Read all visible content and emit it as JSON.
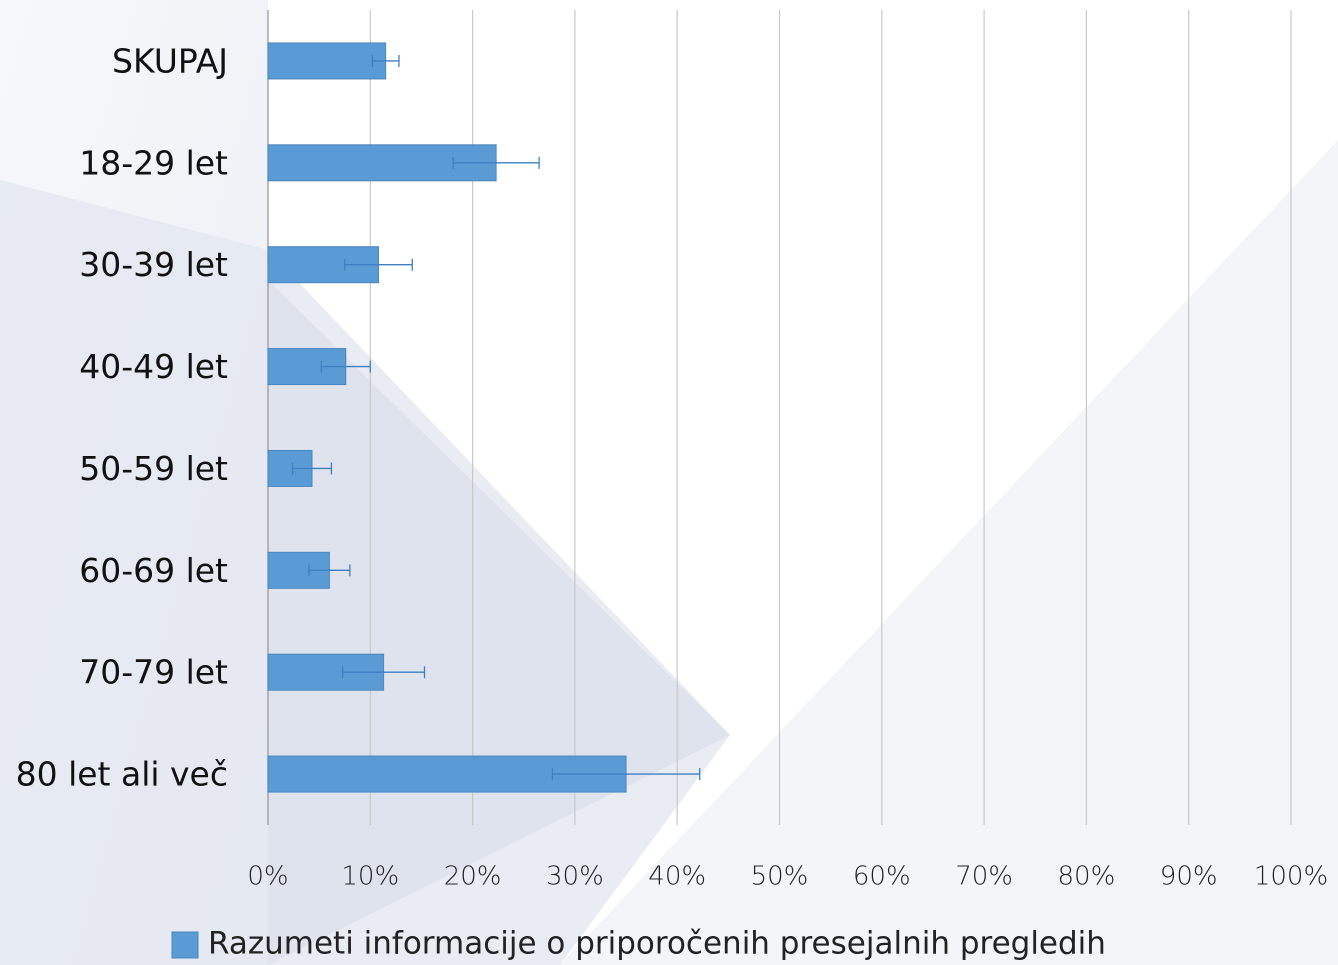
{
  "chart_data": {
    "type": "hbar",
    "categories": [
      "SKUPAJ",
      "18-29 let",
      "30-39 let",
      "40-49 let",
      "50-59 let",
      "60-69 let",
      "70-79 let",
      "80 let ali več"
    ],
    "series": [
      {
        "name": "Razumeti informacije o priporočenih presejalnih pregledih",
        "color": "#5b9bd5",
        "values": [
          11.5,
          22.3,
          10.8,
          7.6,
          4.3,
          6.0,
          11.3,
          35.0
        ],
        "errors": [
          1.3,
          4.2,
          3.3,
          2.4,
          1.9,
          2.0,
          4.0,
          7.2
        ]
      }
    ],
    "xlim": [
      0,
      100
    ],
    "xticks": [
      {
        "value": 0,
        "label": "0%"
      },
      {
        "value": 10,
        "label": "10%"
      },
      {
        "value": 20,
        "label": "20%"
      },
      {
        "value": 30,
        "label": "30%"
      },
      {
        "value": 40,
        "label": "40%"
      },
      {
        "value": 50,
        "label": "50%"
      },
      {
        "value": 60,
        "label": "60%"
      },
      {
        "value": 70,
        "label": "70%"
      },
      {
        "value": 80,
        "label": "80%"
      },
      {
        "value": 90,
        "label": "90%"
      },
      {
        "value": 100,
        "label": "100%"
      }
    ],
    "grid": true,
    "legend": "bottom"
  }
}
